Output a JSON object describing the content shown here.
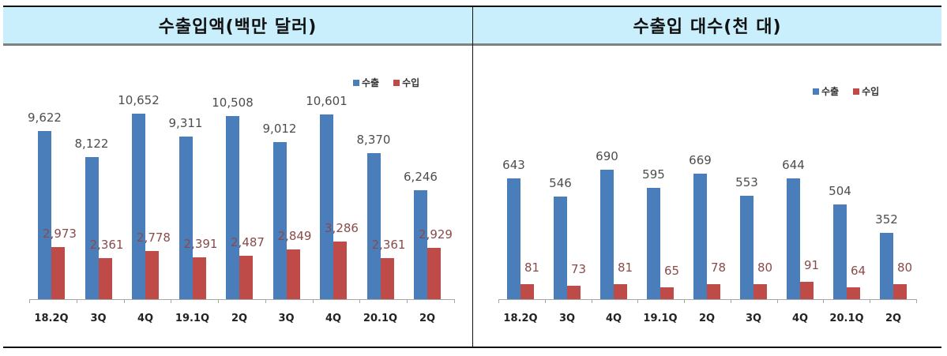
{
  "headers": {
    "left": "수출입액(백만 달러)",
    "right": "수출입 대수(천 대)"
  },
  "colors": {
    "export": "#4a7ebb",
    "import": "#be4b48",
    "export_label": "#4d4d4d",
    "import_label": "#8b4a4a",
    "header_bg": "#c9eefc"
  },
  "chart_data": [
    {
      "type": "bar",
      "title": "수출입액(백만 달러)",
      "categories": [
        "18.2Q",
        "3Q",
        "4Q",
        "19.1Q",
        "2Q",
        "3Q",
        "4Q",
        "20.1Q",
        "2Q"
      ],
      "series": [
        {
          "name": "수출",
          "values": [
            9622,
            8122,
            10652,
            9311,
            10508,
            9012,
            10601,
            8370,
            6246
          ]
        },
        {
          "name": "수입",
          "values": [
            2973,
            2361,
            2778,
            2391,
            2487,
            2849,
            3286,
            2361,
            2929
          ]
        }
      ],
      "value_labels": {
        "export": [
          "9,622",
          "8,122",
          "10,652",
          "9,311",
          "10,508",
          "9,012",
          "10,601",
          "8,370",
          "6,246"
        ],
        "import": [
          "2,973",
          "2,361",
          "2,778",
          "2,391",
          "2,487",
          "2,849",
          "3,286",
          "2,361",
          "2,929"
        ]
      },
      "xlabel": "",
      "ylabel": "",
      "ylim": [
        0,
        12000
      ],
      "grid": false,
      "legend_position": "top-right"
    },
    {
      "type": "bar",
      "title": "수출입 대수(천 대)",
      "categories": [
        "18.2Q",
        "3Q",
        "4Q",
        "19.1Q",
        "2Q",
        "3Q",
        "4Q",
        "20.1Q",
        "2Q"
      ],
      "series": [
        {
          "name": "수출",
          "values": [
            643,
            546,
            690,
            595,
            669,
            553,
            644,
            504,
            352
          ]
        },
        {
          "name": "수입",
          "values": [
            81,
            73,
            81,
            65,
            78,
            80,
            91,
            64,
            80
          ]
        }
      ],
      "value_labels": {
        "export": [
          "643",
          "546",
          "690",
          "595",
          "669",
          "553",
          "644",
          "504",
          "352"
        ],
        "import": [
          "81",
          "73",
          "81",
          "65",
          "78",
          "80",
          "91",
          "64",
          "80"
        ]
      },
      "xlabel": "",
      "ylabel": "",
      "ylim": [
        0,
        800
      ],
      "grid": false,
      "legend_position": "top-right"
    }
  ]
}
